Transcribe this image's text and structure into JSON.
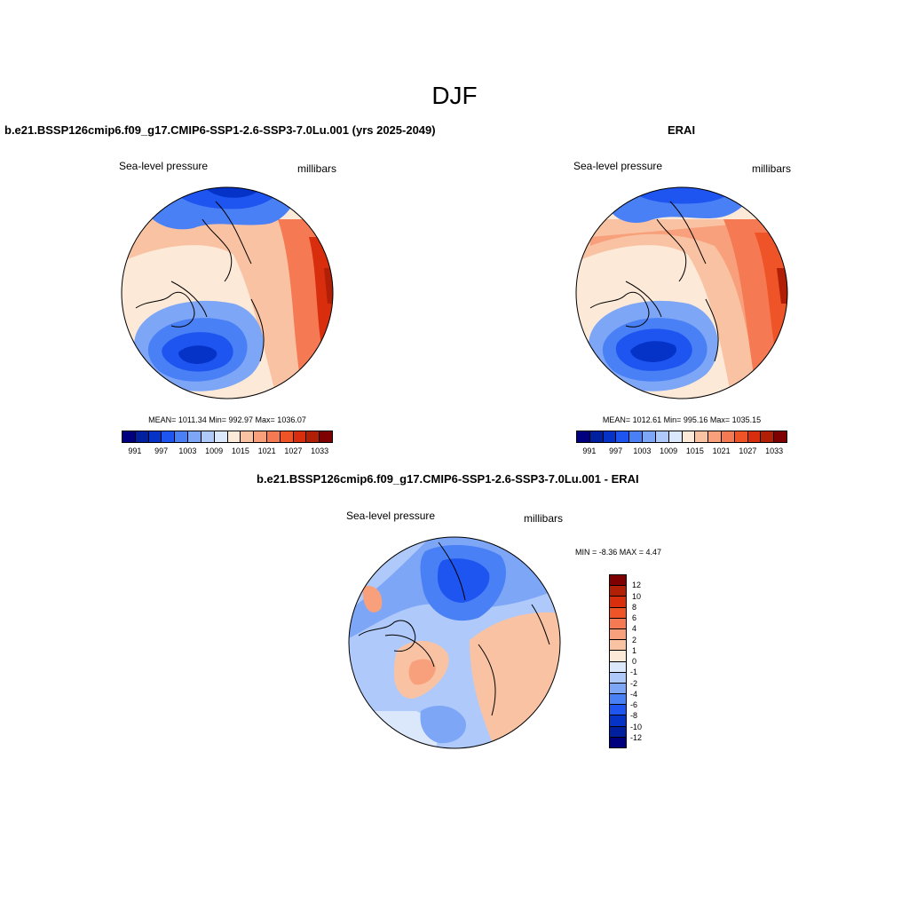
{
  "figure": {
    "title": "DJF"
  },
  "panels": {
    "model": {
      "title": "b.e21.BSSP126cmip6.f09_g17.CMIP6-SSP1-2.6-SSP3-7.0Lu.001 (yrs 2025-2049)",
      "variable": "Sea-level pressure",
      "units": "millibars",
      "stats": "MEAN= 1011.34  Min= 992.97  Max= 1036.07"
    },
    "obs": {
      "title": "ERAI",
      "variable": "Sea-level pressure",
      "units": "millibars",
      "stats": "MEAN= 1012.61  Min= 995.16  Max= 1035.15"
    },
    "diff": {
      "title": "b.e21.BSSP126cmip6.f09_g17.CMIP6-SSP1-2.6-SSP3-7.0Lu.001 - ERAI",
      "variable": "Sea-level pressure",
      "units": "millibars",
      "stats": "MIN =  -8.36 MAX =   4.47"
    }
  },
  "colorbar_abs": {
    "colors": [
      "#00007f",
      "#0020a0",
      "#0533c8",
      "#1e55f0",
      "#4a80f5",
      "#7ea6f7",
      "#aec9fa",
      "#dbe8fc",
      "#fde9d8",
      "#f9c3a3",
      "#f8a07b",
      "#f57a53",
      "#ef5428",
      "#d92e0e",
      "#b01f06",
      "#7f0000"
    ],
    "tick_labels": [
      "991",
      "997",
      "1003",
      "1009",
      "1015",
      "1021",
      "1027",
      "1033"
    ]
  },
  "colorbar_diff": {
    "colors": [
      "#7f0000",
      "#b01f06",
      "#d92e0e",
      "#ef5428",
      "#f57a53",
      "#f8a07b",
      "#f9c3a3",
      "#fde9d8",
      "#dbe8fc",
      "#aec9fa",
      "#7ea6f7",
      "#4a80f5",
      "#1e55f0",
      "#0533c8",
      "#0020a0",
      "#00007f"
    ],
    "tick_labels": [
      "12",
      "10",
      "8",
      "6",
      "4",
      "2",
      "1",
      "0",
      "-1",
      "-2",
      "-4",
      "-6",
      "-8",
      "-10",
      "-12"
    ]
  }
}
